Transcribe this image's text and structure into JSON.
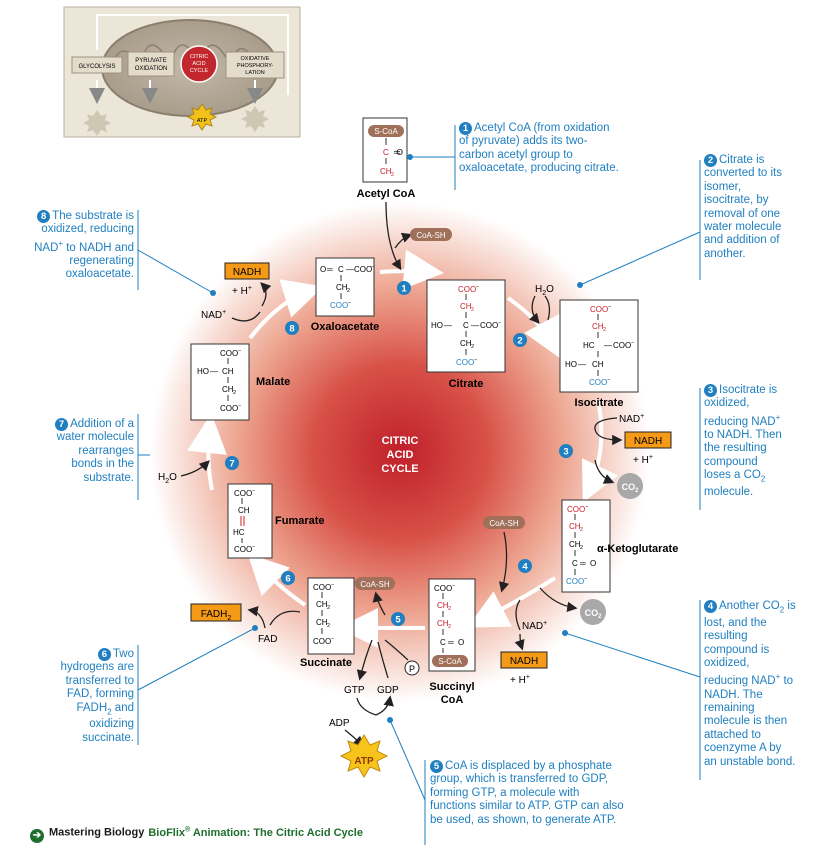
{
  "overview": {
    "glycolysis": "GLYCOLYSIS",
    "pyruvate_oxidation": [
      "PYRUVATE",
      "OXIDATION"
    ],
    "citric_acid_cycle": [
      "CITRIC",
      "ACID",
      "CYCLE"
    ],
    "oxidative_phosphorylation": [
      "OXIDATIVE",
      "PHOSPHORY-",
      "LATION"
    ],
    "atp": "ATP"
  },
  "center_label": [
    "CITRIC",
    "ACID",
    "CYCLE"
  ],
  "molecules": {
    "acetyl_coa": "Acetyl CoA",
    "oxaloacetate": "Oxaloacetate",
    "citrate": "Citrate",
    "isocitrate": "Isocitrate",
    "alpha_ketoglutarate": "α-Ketoglutarate",
    "succinyl_coa": [
      "Succinyl",
      "CoA"
    ],
    "succinate": "Succinate",
    "fumarate": "Fumarate",
    "malate": "Malate"
  },
  "struct": {
    "scoa": "S-CoA",
    "coo": "COO",
    "ch2": "CH",
    "ch3": "CH",
    "ch": "CH",
    "hc": "HC",
    "ho": "HO",
    "c": "C",
    "o": "O",
    "h": "H",
    "dbl": "═",
    "bond": "—"
  },
  "cofactors": {
    "coash": "CoA-SH",
    "coash_ketoglutarate": "CoA-SH",
    "coash_succinate": "CoA-SH",
    "nadh": "NADH",
    "nad": "NAD",
    "hplus": "+ H",
    "h2o": "H",
    "co2": "CO",
    "fadh2": "FADH",
    "fad": "FAD",
    "gtp": "GTP",
    "gdp": "GDP",
    "adp": "ADP",
    "atp": "ATP",
    "pi": "P",
    "plus_sup": "+",
    "sub2": "2",
    "h2o_o": "O"
  },
  "step_numbers": [
    "1",
    "2",
    "3",
    "4",
    "5",
    "6",
    "7",
    "8"
  ],
  "notes": {
    "n1": "Acetyl CoA (from oxidation of pyruvate) adds its two-carbon acetyl group to oxaloacetate, producing citrate.",
    "n2": "Citrate is converted to its isomer, isocitrate, by removal of one water molecule and addition of another.",
    "n3a": "Isocitrate is oxidized, reducing NAD",
    "n3b": " to NADH. Then the resulting compound loses a CO",
    "n3c": " molecule.",
    "n4a": "Another CO",
    "n4b": " is lost, and the resulting compound is oxidized, reducing NAD",
    "n4c": " to NADH. The remaining molecule is then attached to coenzyme A by an unstable bond.",
    "n5": "CoA is displaced by a phosphate group, which is transferred to GDP, forming GTP, a molecule with functions similar to ATP. GTP can also be used, as shown, to generate ATP.",
    "n6a": "Two hydrogens are transferred to FAD, forming FADH",
    "n6b": " and oxidizing succinate.",
    "n7": "Addition of a water molecule rearranges bonds in the substrate.",
    "n8a": "The substrate is oxidized, reducing NAD",
    "n8b": " to NADH and regenerating oxaloacetate."
  },
  "footer": {
    "brand": "Mastering Biology",
    "bioflix": "BioFlix",
    "reg": "®",
    "title": " Animation: The Citric Acid Cycle"
  }
}
